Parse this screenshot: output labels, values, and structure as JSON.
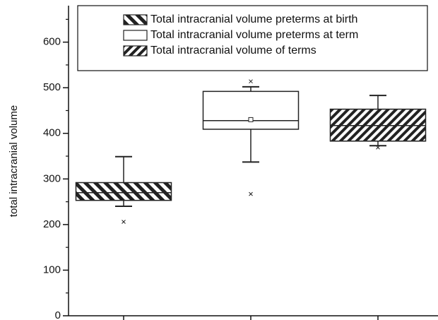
{
  "chart_data": {
    "type": "box",
    "y_label": "total intracranial volume",
    "categories": [
      null,
      null,
      null
    ],
    "ylim": [
      0,
      680
    ],
    "yticks": [
      0,
      100,
      200,
      300,
      400,
      500,
      600
    ],
    "yminorticks": [
      50,
      150,
      250,
      350,
      450,
      550,
      650
    ],
    "series": [
      {
        "name": "Total intracranial volume preterms at birth",
        "pattern": "backslash",
        "color": "#222222",
        "min": 240,
        "q1": 253,
        "median": 270,
        "q3": 292,
        "max": 349,
        "outliers": [
          206
        ]
      },
      {
        "name": "Total intracranial volume preterms at term",
        "pattern": "none",
        "color": "#222222",
        "min": 337,
        "q1": 409,
        "median": 428,
        "q3": 492,
        "max": 502,
        "mean": 430,
        "outliers": [
          514,
          267
        ]
      },
      {
        "name": "Total intracranial volume of terms",
        "pattern": "slash",
        "color": "#222222",
        "min": 373,
        "q1": 383,
        "median": 417,
        "q3": 453,
        "max": 483,
        "outliers": [
          369
        ]
      }
    ]
  }
}
